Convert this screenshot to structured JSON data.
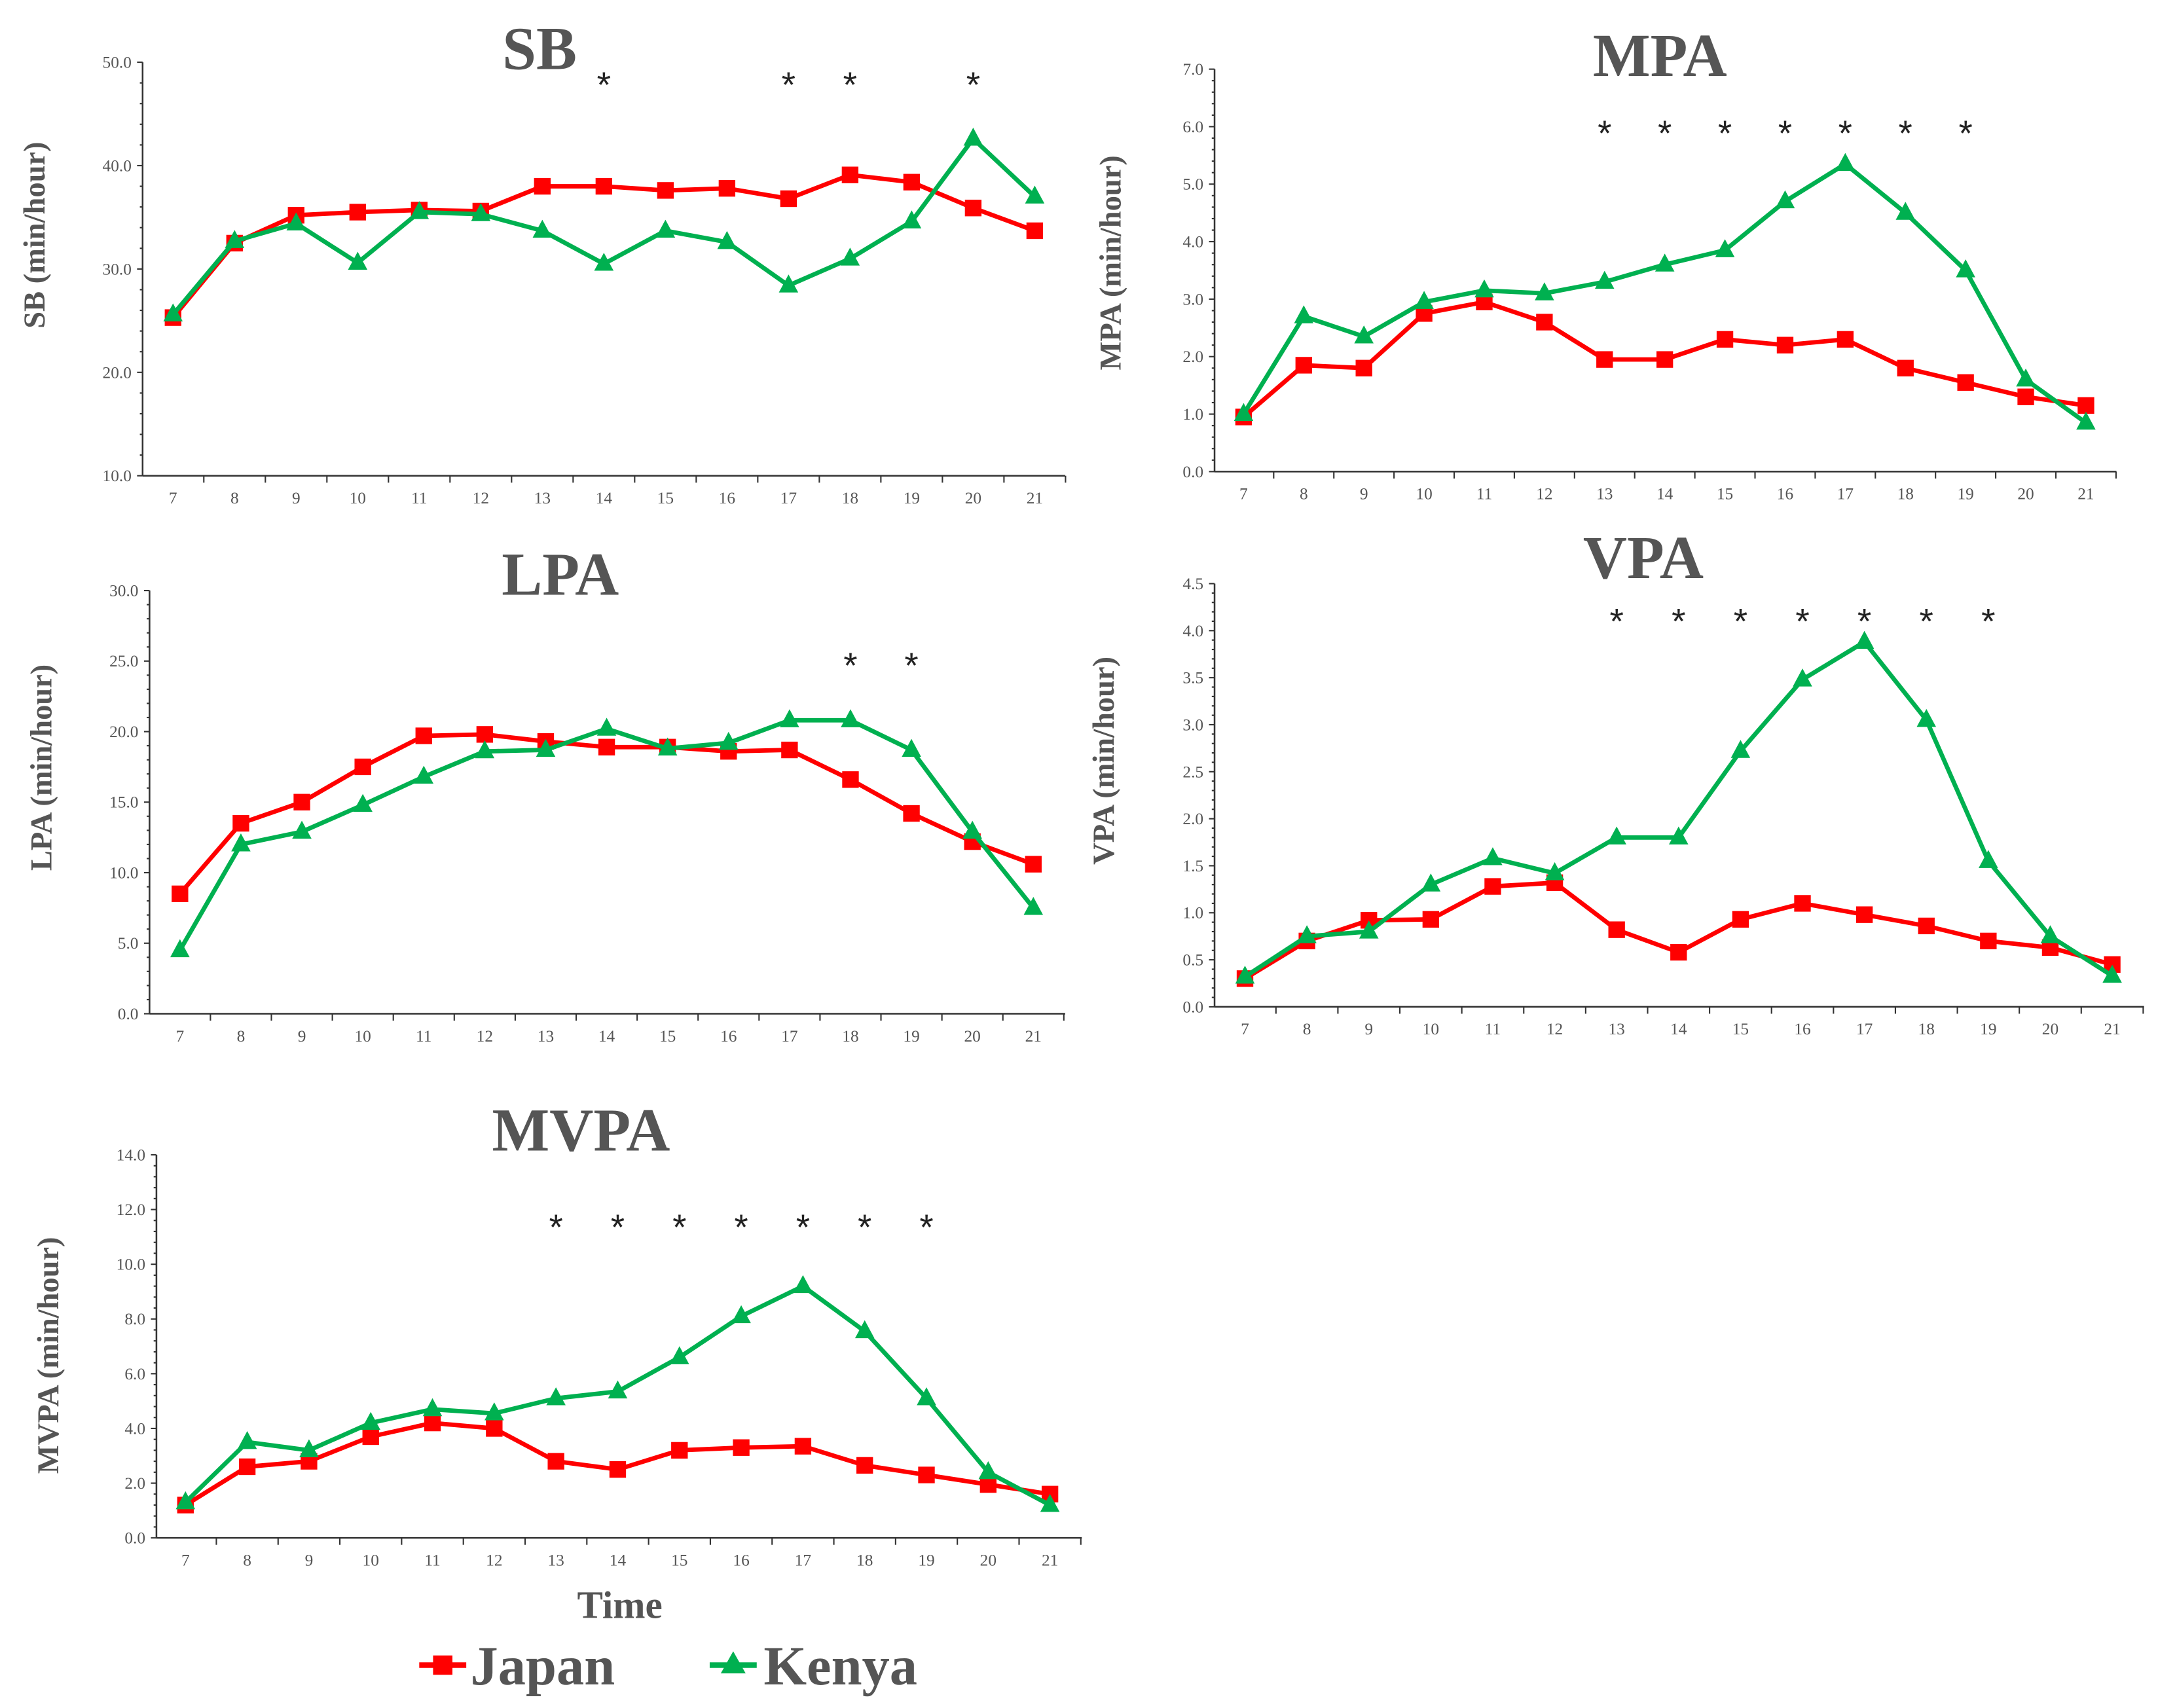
{
  "colors": {
    "japan": "#ff0000",
    "kenya": "#00b050",
    "axis": "#333333"
  },
  "legend": {
    "japan": "Japan",
    "kenya": "Kenya"
  },
  "xlabel": "Time",
  "chart_data": [
    {
      "type": "line",
      "title": "SB",
      "ylabel": "SB (min/hour)",
      "x": [
        7,
        8,
        9,
        10,
        11,
        12,
        13,
        14,
        15,
        16,
        17,
        18,
        19,
        20,
        21
      ],
      "xtick_labels": [
        "7",
        "8",
        "9",
        "10",
        "11",
        "12",
        "13",
        "14",
        "15",
        "16",
        "17",
        "18",
        "19",
        "20",
        "21"
      ],
      "ylim": [
        10,
        50
      ],
      "ytick_labels": [
        "10.0",
        "20.0",
        "30.0",
        "40.0",
        "50.0"
      ],
      "ytick_values": [
        10,
        20,
        30,
        40,
        50
      ],
      "significant_x": [
        14,
        17,
        18,
        20
      ],
      "star": "*",
      "series": [
        {
          "name": "Japan",
          "marker": "square",
          "values": [
            25.3,
            32.5,
            35.2,
            35.5,
            35.7,
            35.6,
            38.0,
            38.0,
            37.6,
            37.8,
            36.8,
            39.1,
            38.4,
            35.9,
            33.7
          ]
        },
        {
          "name": "Kenya",
          "marker": "triangle",
          "values": [
            25.6,
            32.7,
            34.4,
            30.6,
            35.5,
            35.3,
            33.7,
            30.5,
            33.7,
            32.6,
            28.4,
            31.0,
            34.6,
            42.6,
            37.0
          ]
        }
      ]
    },
    {
      "type": "line",
      "title": "MPA",
      "ylabel": "MPA (min/hour)",
      "x": [
        7,
        8,
        9,
        10,
        11,
        12,
        13,
        14,
        15,
        16,
        17,
        18,
        19,
        20,
        21
      ],
      "xtick_labels": [
        "7",
        "8",
        "9",
        "10",
        "11",
        "12",
        "13",
        "14",
        "15",
        "16",
        "17",
        "18",
        "19",
        "20",
        "21"
      ],
      "ylim": [
        0,
        7
      ],
      "ytick_labels": [
        "0.0",
        "1.0",
        "2.0",
        "3.0",
        "4.0",
        "5.0",
        "6.0",
        "7.0"
      ],
      "ytick_values": [
        0,
        1,
        2,
        3,
        4,
        5,
        6,
        7
      ],
      "significant_x": [
        13,
        14,
        15,
        16,
        17,
        18,
        19
      ],
      "star": "*",
      "series": [
        {
          "name": "Japan",
          "marker": "square",
          "values": [
            0.95,
            1.85,
            1.8,
            2.75,
            2.95,
            2.6,
            1.95,
            1.95,
            2.3,
            2.2,
            2.3,
            1.8,
            1.55,
            1.3,
            1.15
          ]
        },
        {
          "name": "Kenya",
          "marker": "triangle",
          "values": [
            1.0,
            2.7,
            2.35,
            2.95,
            3.15,
            3.1,
            3.3,
            3.6,
            3.85,
            4.7,
            5.35,
            4.5,
            3.5,
            1.6,
            0.85
          ]
        }
      ]
    },
    {
      "type": "line",
      "title": "LPA",
      "ylabel": "LPA (min/hour)",
      "x": [
        7,
        8,
        9,
        10,
        11,
        12,
        13,
        14,
        15,
        16,
        17,
        18,
        19,
        20,
        21
      ],
      "xtick_labels": [
        "7",
        "8",
        "9",
        "10",
        "11",
        "12",
        "13",
        "14",
        "15",
        "16",
        "17",
        "18",
        "19",
        "20",
        "21"
      ],
      "ylim": [
        0,
        30
      ],
      "ytick_labels": [
        "0.0",
        "5.0",
        "10.0",
        "15.0",
        "20.0",
        "25.0",
        "30.0"
      ],
      "ytick_values": [
        0,
        5,
        10,
        15,
        20,
        25,
        30
      ],
      "significant_x": [
        18,
        19
      ],
      "star": "*",
      "series": [
        {
          "name": "Japan",
          "marker": "square",
          "values": [
            8.5,
            13.5,
            15.0,
            17.5,
            19.7,
            19.8,
            19.3,
            18.9,
            18.9,
            18.6,
            18.7,
            16.6,
            14.2,
            12.2,
            10.6
          ]
        },
        {
          "name": "Kenya",
          "marker": "triangle",
          "values": [
            4.5,
            12.0,
            12.9,
            14.8,
            16.8,
            18.6,
            18.7,
            20.2,
            18.8,
            19.2,
            20.8,
            20.8,
            18.7,
            12.9,
            7.5
          ]
        }
      ]
    },
    {
      "type": "line",
      "title": "VPA",
      "ylabel": "VPA (min/hour)",
      "x": [
        7,
        8,
        9,
        10,
        11,
        12,
        13,
        14,
        15,
        16,
        17,
        18,
        19,
        20,
        21
      ],
      "xtick_labels": [
        "7",
        "8",
        "9",
        "10",
        "11",
        "12",
        "13",
        "14",
        "15",
        "16",
        "17",
        "18",
        "19",
        "20",
        "21"
      ],
      "ylim": [
        0,
        4.5
      ],
      "ytick_labels": [
        "0.0",
        "0.5",
        "1.0",
        "1.5",
        "2.0",
        "2.5",
        "3.0",
        "3.5",
        "4.0",
        "4.5"
      ],
      "ytick_values": [
        0,
        0.5,
        1,
        1.5,
        2,
        2.5,
        3,
        3.5,
        4,
        4.5
      ],
      "significant_x": [
        13,
        14,
        15,
        16,
        17,
        18,
        19
      ],
      "star": "*",
      "series": [
        {
          "name": "Japan",
          "marker": "square",
          "values": [
            0.3,
            0.7,
            0.92,
            0.93,
            1.28,
            1.32,
            0.82,
            0.58,
            0.93,
            1.1,
            0.98,
            0.86,
            0.7,
            0.63,
            0.45
          ]
        },
        {
          "name": "Kenya",
          "marker": "triangle",
          "values": [
            0.32,
            0.75,
            0.8,
            1.3,
            1.58,
            1.42,
            1.8,
            1.8,
            2.72,
            3.48,
            3.88,
            3.05,
            1.55,
            0.75,
            0.33
          ]
        }
      ]
    },
    {
      "type": "line",
      "title": "MVPA",
      "ylabel": "MVPA (min/hour)",
      "x": [
        7,
        8,
        9,
        10,
        11,
        12,
        13,
        14,
        15,
        16,
        17,
        18,
        19,
        20,
        21
      ],
      "xtick_labels": [
        "7",
        "8",
        "9",
        "10",
        "11",
        "12",
        "13",
        "14",
        "15",
        "16",
        "17",
        "18",
        "19",
        "20",
        "21"
      ],
      "ylim": [
        0,
        14
      ],
      "ytick_labels": [
        "0.0",
        "2.0",
        "4.0",
        "6.0",
        "8.0",
        "10.0",
        "12.0",
        "14.0"
      ],
      "ytick_values": [
        0,
        2,
        4,
        6,
        8,
        10,
        12,
        14
      ],
      "significant_x": [
        13,
        14,
        15,
        16,
        17,
        18,
        19
      ],
      "star": "*",
      "series": [
        {
          "name": "Japan",
          "marker": "square",
          "values": [
            1.2,
            2.6,
            2.8,
            3.7,
            4.2,
            4.0,
            2.8,
            2.5,
            3.2,
            3.3,
            3.35,
            2.65,
            2.3,
            1.95,
            1.6
          ]
        },
        {
          "name": "Kenya",
          "marker": "triangle",
          "values": [
            1.3,
            3.5,
            3.2,
            4.2,
            4.7,
            4.55,
            5.1,
            5.35,
            6.6,
            8.1,
            9.2,
            7.55,
            5.1,
            2.4,
            1.2
          ]
        }
      ]
    }
  ]
}
